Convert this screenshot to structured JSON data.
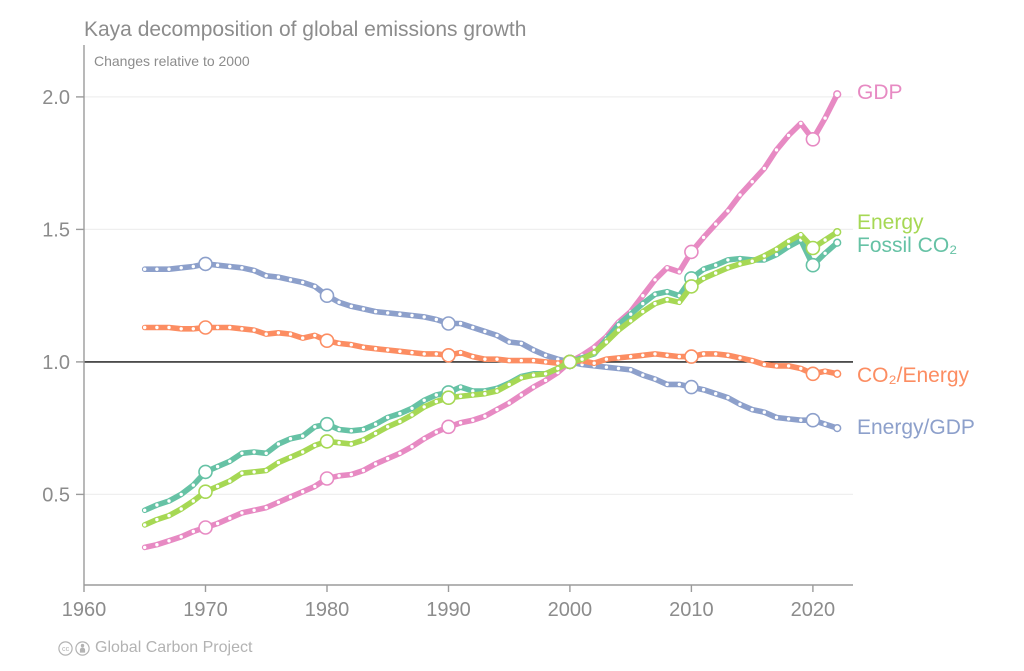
{
  "header": {
    "title": "Kaya decomposition of global emissions growth",
    "subtitle": "Changes relative to 2000"
  },
  "footer": {
    "license_icons": [
      "cc-icon",
      "cc-by-icon"
    ],
    "credit": "Global Carbon Project"
  },
  "colors": {
    "gdp": "#e78ac3",
    "energy": "#a6d854",
    "fossil_co2": "#66c2a5",
    "co2_per_energy": "#fc8d62",
    "energy_per_gdp": "#8da0cb",
    "baseline_line": "#111111",
    "gridline": "#efefef",
    "axis": "#9b9b9b",
    "text_gray": "#8c8c8c",
    "footer_gray": "#b3b3b3"
  },
  "chart_data": {
    "type": "line",
    "title": "Kaya decomposition of global emissions growth",
    "subtitle": "Changes relative to 2000",
    "xlabel": "",
    "ylabel": "",
    "xlim": [
      1960,
      2023.3
    ],
    "ylim": [
      0.158,
      2.196
    ],
    "xticks": [
      1960,
      1970,
      1980,
      1990,
      2000,
      2010,
      2020
    ],
    "yticks": [
      0.5,
      1.0,
      1.5,
      2.0
    ],
    "baseline": 1.0,
    "grid": "horizontal-light",
    "legend_position": "right",
    "marker_years": [
      1970,
      1980,
      1990,
      2000,
      2010,
      2020
    ],
    "draw_order": [
      "Energy/GDP",
      "CO₂/Energy",
      "GDP",
      "Fossil CO₂",
      "Energy"
    ],
    "x": [
      1965,
      1966,
      1967,
      1968,
      1969,
      1970,
      1971,
      1972,
      1973,
      1974,
      1975,
      1976,
      1977,
      1978,
      1979,
      1980,
      1981,
      1982,
      1983,
      1984,
      1985,
      1986,
      1987,
      1988,
      1989,
      1990,
      1991,
      1992,
      1993,
      1994,
      1995,
      1996,
      1997,
      1998,
      1999,
      2000,
      2001,
      2002,
      2003,
      2004,
      2005,
      2006,
      2007,
      2008,
      2009,
      2010,
      2011,
      2012,
      2013,
      2014,
      2015,
      2016,
      2017,
      2018,
      2019,
      2020,
      2021,
      2022
    ],
    "series": [
      {
        "name": "GDP",
        "color": "#e78ac3",
        "values": [
          0.3,
          0.31,
          0.325,
          0.34,
          0.36,
          0.375,
          0.39,
          0.41,
          0.43,
          0.44,
          0.45,
          0.47,
          0.49,
          0.51,
          0.53,
          0.56,
          0.57,
          0.575,
          0.59,
          0.615,
          0.635,
          0.655,
          0.68,
          0.71,
          0.735,
          0.755,
          0.77,
          0.78,
          0.795,
          0.82,
          0.845,
          0.875,
          0.905,
          0.93,
          0.96,
          1.0,
          1.025,
          1.055,
          1.095,
          1.15,
          1.19,
          1.25,
          1.31,
          1.355,
          1.34,
          1.415,
          1.47,
          1.52,
          1.57,
          1.63,
          1.68,
          1.73,
          1.8,
          1.855,
          1.9,
          1.84,
          1.92,
          2.01
        ]
      },
      {
        "name": "Energy",
        "color": "#a6d854",
        "values": [
          0.385,
          0.405,
          0.42,
          0.445,
          0.475,
          0.51,
          0.53,
          0.55,
          0.58,
          0.585,
          0.59,
          0.62,
          0.64,
          0.66,
          0.685,
          0.7,
          0.695,
          0.69,
          0.705,
          0.73,
          0.755,
          0.775,
          0.8,
          0.83,
          0.85,
          0.865,
          0.87,
          0.875,
          0.88,
          0.89,
          0.915,
          0.94,
          0.95,
          0.955,
          0.975,
          1.0,
          1.01,
          1.035,
          1.075,
          1.12,
          1.155,
          1.19,
          1.22,
          1.235,
          1.225,
          1.285,
          1.315,
          1.335,
          1.355,
          1.37,
          1.38,
          1.4,
          1.425,
          1.455,
          1.48,
          1.43,
          1.46,
          1.49
        ]
      },
      {
        "name": "Fossil CO₂",
        "color": "#66c2a5",
        "values": [
          0.44,
          0.46,
          0.475,
          0.5,
          0.535,
          0.585,
          0.605,
          0.625,
          0.655,
          0.66,
          0.655,
          0.69,
          0.71,
          0.72,
          0.755,
          0.765,
          0.745,
          0.74,
          0.745,
          0.765,
          0.79,
          0.805,
          0.825,
          0.855,
          0.875,
          0.885,
          0.905,
          0.89,
          0.89,
          0.9,
          0.92,
          0.945,
          0.955,
          0.955,
          0.975,
          1.0,
          1.015,
          1.03,
          1.085,
          1.14,
          1.18,
          1.22,
          1.255,
          1.265,
          1.25,
          1.315,
          1.35,
          1.365,
          1.385,
          1.39,
          1.385,
          1.385,
          1.405,
          1.435,
          1.46,
          1.365,
          1.41,
          1.45
        ]
      },
      {
        "name": "CO₂/Energy",
        "color": "#fc8d62",
        "values": [
          1.13,
          1.13,
          1.13,
          1.125,
          1.125,
          1.13,
          1.13,
          1.13,
          1.125,
          1.12,
          1.105,
          1.11,
          1.105,
          1.09,
          1.1,
          1.08,
          1.07,
          1.065,
          1.055,
          1.05,
          1.045,
          1.04,
          1.035,
          1.03,
          1.03,
          1.025,
          1.035,
          1.02,
          1.01,
          1.01,
          1.005,
          1.005,
          1.005,
          1.0,
          0.995,
          1.0,
          1.005,
          0.995,
          1.01,
          1.015,
          1.02,
          1.025,
          1.03,
          1.025,
          1.02,
          1.02,
          1.03,
          1.03,
          1.025,
          1.015,
          1.005,
          0.99,
          0.985,
          0.985,
          0.975,
          0.955,
          0.965,
          0.955
        ]
      },
      {
        "name": "Energy/GDP",
        "color": "#8da0cb",
        "values": [
          1.35,
          1.35,
          1.35,
          1.355,
          1.36,
          1.37,
          1.365,
          1.36,
          1.355,
          1.345,
          1.325,
          1.32,
          1.31,
          1.3,
          1.285,
          1.25,
          1.225,
          1.21,
          1.2,
          1.19,
          1.185,
          1.18,
          1.175,
          1.17,
          1.16,
          1.145,
          1.145,
          1.13,
          1.115,
          1.1,
          1.075,
          1.07,
          1.045,
          1.025,
          1.01,
          1.0,
          0.99,
          0.985,
          0.98,
          0.975,
          0.97,
          0.95,
          0.935,
          0.915,
          0.915,
          0.905,
          0.895,
          0.88,
          0.865,
          0.84,
          0.82,
          0.81,
          0.79,
          0.785,
          0.78,
          0.78,
          0.765,
          0.75
        ]
      }
    ]
  }
}
